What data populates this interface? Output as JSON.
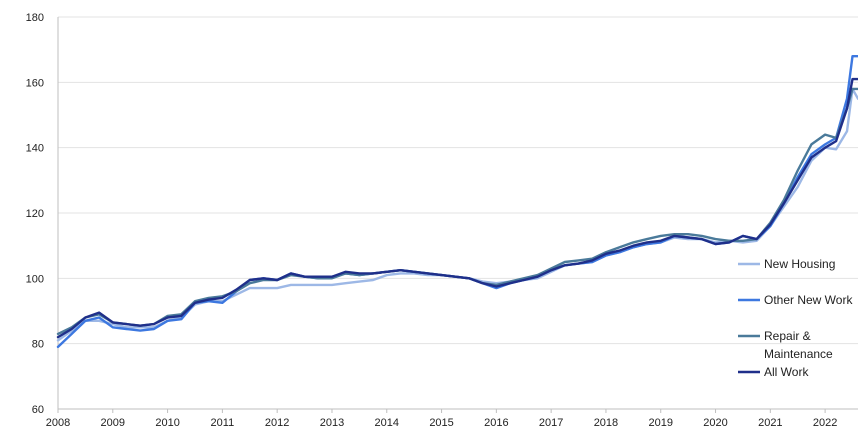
{
  "chart_data": {
    "type": "line",
    "title": "",
    "xlabel": "",
    "ylabel": "",
    "ylim": [
      60,
      180
    ],
    "yticks": [
      60,
      80,
      100,
      120,
      140,
      160,
      180
    ],
    "xlim": [
      2008,
      2022.6
    ],
    "xticks": [
      2008,
      2009,
      2010,
      2011,
      2012,
      2013,
      2014,
      2015,
      2016,
      2017,
      2018,
      2019,
      2020,
      2021,
      2022
    ],
    "grid": "horizontal",
    "legend_position": "right",
    "series": [
      {
        "name": "New Housing",
        "color": "#9db8e6",
        "x": [
          2008,
          2008.25,
          2008.5,
          2008.75,
          2009,
          2009.25,
          2009.5,
          2009.75,
          2010,
          2010.25,
          2010.5,
          2010.75,
          2011,
          2011.25,
          2011.5,
          2011.75,
          2012,
          2012.25,
          2012.5,
          2012.75,
          2013,
          2013.25,
          2013.5,
          2013.75,
          2014,
          2014.25,
          2014.5,
          2014.75,
          2015,
          2015.25,
          2015.5,
          2015.75,
          2016,
          2016.25,
          2016.5,
          2016.75,
          2017,
          2017.25,
          2017.5,
          2017.75,
          2018,
          2018.25,
          2018.5,
          2018.75,
          2019,
          2019.25,
          2019.5,
          2019.75,
          2020,
          2020.25,
          2020.5,
          2020.75,
          2021,
          2021.25,
          2021.5,
          2021.75,
          2022,
          2022.2,
          2022.4,
          2022.5,
          2022.6
        ],
        "values": [
          81,
          84,
          87,
          87,
          86,
          85,
          85,
          85,
          87,
          88,
          92,
          93,
          93,
          95,
          97,
          97,
          97,
          98,
          98,
          98,
          98,
          98.5,
          99,
          99.5,
          101,
          101.5,
          101.5,
          101,
          101,
          100.5,
          100,
          99,
          98.5,
          99,
          99.5,
          100,
          102,
          104,
          104.5,
          105,
          107,
          108,
          109.5,
          110.5,
          111,
          112.5,
          112,
          112,
          111,
          111.5,
          111,
          111.5,
          116,
          122,
          128,
          136,
          140,
          139.5,
          145,
          158,
          155
        ]
      },
      {
        "name": "Other New Work",
        "color": "#3d78e0",
        "x": [
          2008,
          2008.25,
          2008.5,
          2008.75,
          2009,
          2009.25,
          2009.5,
          2009.75,
          2010,
          2010.25,
          2010.5,
          2010.75,
          2011,
          2011.25,
          2011.5,
          2011.75,
          2012,
          2012.25,
          2012.5,
          2012.75,
          2013,
          2013.25,
          2013.5,
          2013.75,
          2014,
          2014.25,
          2014.5,
          2014.75,
          2015,
          2015.25,
          2015.5,
          2015.75,
          2016,
          2016.25,
          2016.5,
          2016.75,
          2017,
          2017.25,
          2017.5,
          2017.75,
          2018,
          2018.25,
          2018.5,
          2018.75,
          2019,
          2019.25,
          2019.5,
          2019.75,
          2020,
          2020.25,
          2020.5,
          2020.75,
          2021,
          2021.25,
          2021.5,
          2021.75,
          2022,
          2022.2,
          2022.4,
          2022.5,
          2022.6
        ],
        "values": [
          79,
          83,
          87,
          88,
          85,
          84.5,
          84,
          84.5,
          87,
          87.5,
          92.5,
          93,
          92.5,
          96,
          99.5,
          100,
          99.5,
          101.5,
          100.5,
          100,
          100.5,
          101.5,
          101,
          101.5,
          102,
          102.5,
          102,
          101.5,
          101,
          100.5,
          100,
          98.5,
          97,
          98.5,
          99.5,
          100.5,
          102.5,
          104,
          104.5,
          105,
          107,
          108,
          109.5,
          110.5,
          111,
          113,
          112.5,
          112,
          110.5,
          111,
          113,
          112,
          116,
          123,
          131,
          138,
          141,
          143,
          155,
          168,
          168
        ]
      },
      {
        "name": "Repair & Maintenance",
        "color": "#4a7a9a",
        "x": [
          2008,
          2008.25,
          2008.5,
          2008.75,
          2009,
          2009.25,
          2009.5,
          2009.75,
          2010,
          2010.25,
          2010.5,
          2010.75,
          2011,
          2011.25,
          2011.5,
          2011.75,
          2012,
          2012.25,
          2012.5,
          2012.75,
          2013,
          2013.25,
          2013.5,
          2013.75,
          2014,
          2014.25,
          2014.5,
          2014.75,
          2015,
          2015.25,
          2015.5,
          2015.75,
          2016,
          2016.25,
          2016.5,
          2016.75,
          2017,
          2017.25,
          2017.5,
          2017.75,
          2018,
          2018.25,
          2018.5,
          2018.75,
          2019,
          2019.25,
          2019.5,
          2019.75,
          2020,
          2020.25,
          2020.5,
          2020.75,
          2021,
          2021.25,
          2021.5,
          2021.75,
          2022,
          2022.2,
          2022.4,
          2022.5,
          2022.6
        ],
        "values": [
          83,
          85,
          88,
          89,
          86.5,
          86,
          85.5,
          86,
          88.5,
          89,
          93,
          94,
          94.5,
          96,
          98.5,
          99.5,
          99.5,
          101,
          100.5,
          100,
          100,
          101.5,
          101,
          101.5,
          102,
          102.5,
          102,
          101.5,
          101,
          100.5,
          100,
          98.5,
          98,
          99,
          100,
          101,
          103,
          105,
          105.5,
          106,
          108,
          109.5,
          111,
          112,
          113,
          113.5,
          113.5,
          113,
          112,
          111.5,
          111.5,
          112,
          117,
          124,
          133,
          141,
          144,
          143,
          152,
          158,
          158
        ]
      },
      {
        "name": "All Work",
        "color": "#1f2f8a",
        "x": [
          2008,
          2008.25,
          2008.5,
          2008.75,
          2009,
          2009.25,
          2009.5,
          2009.75,
          2010,
          2010.25,
          2010.5,
          2010.75,
          2011,
          2011.25,
          2011.5,
          2011.75,
          2012,
          2012.25,
          2012.5,
          2012.75,
          2013,
          2013.25,
          2013.5,
          2013.75,
          2014,
          2014.25,
          2014.5,
          2014.75,
          2015,
          2015.25,
          2015.5,
          2015.75,
          2016,
          2016.25,
          2016.5,
          2016.75,
          2017,
          2017.25,
          2017.5,
          2017.75,
          2018,
          2018.25,
          2018.5,
          2018.75,
          2019,
          2019.25,
          2019.5,
          2019.75,
          2020,
          2020.25,
          2020.5,
          2020.75,
          2021,
          2021.25,
          2021.5,
          2021.75,
          2022,
          2022.2,
          2022.4,
          2022.5,
          2022.6
        ],
        "values": [
          82,
          84.5,
          88,
          89.5,
          86.5,
          86,
          85.5,
          86,
          88,
          88.5,
          92.5,
          93.5,
          94,
          96.5,
          99.5,
          100,
          99.5,
          101.5,
          100.5,
          100.5,
          100.5,
          102,
          101.5,
          101.5,
          102,
          102.5,
          102,
          101.5,
          101,
          100.5,
          100,
          98.5,
          97.5,
          98.5,
          99.5,
          100.5,
          102.5,
          104,
          104.5,
          105.5,
          107.5,
          108.5,
          110,
          111,
          111.5,
          113,
          112.5,
          112,
          110.5,
          111,
          113,
          112,
          116.5,
          123,
          130,
          137,
          140,
          142,
          152,
          161,
          161
        ]
      }
    ]
  }
}
